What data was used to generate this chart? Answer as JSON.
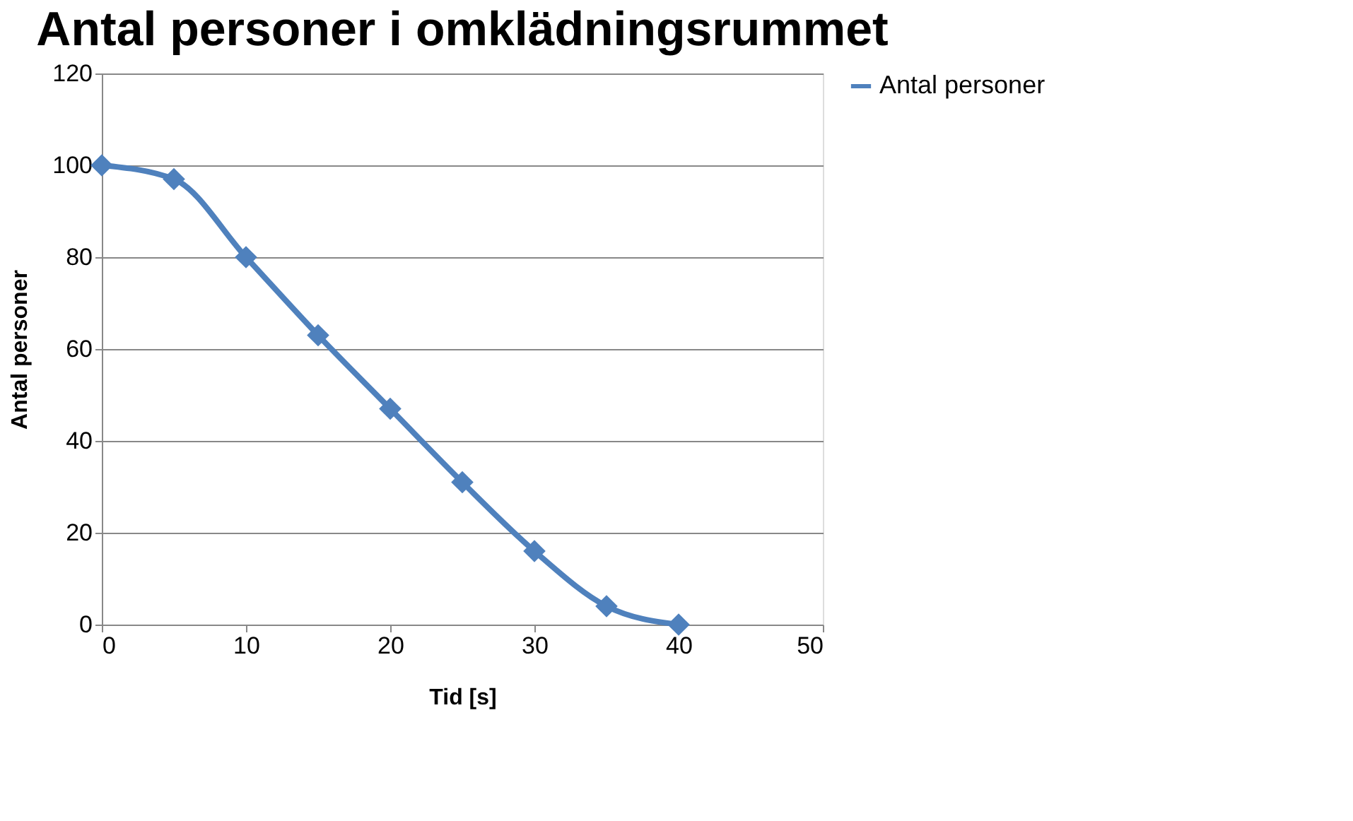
{
  "chart_data": {
    "type": "line",
    "title": "Antal personer i omklädningsrummet",
    "xlabel": "Tid [s]",
    "ylabel": "Antal personer",
    "x": [
      0,
      5,
      10,
      15,
      20,
      25,
      30,
      35,
      40
    ],
    "series": [
      {
        "name": "Antal personer",
        "color": "#4f81bd",
        "values": [
          100,
          97,
          80,
          63,
          47,
          31,
          16,
          4,
          0
        ]
      }
    ],
    "xlim": [
      0,
      50
    ],
    "xticks": [
      0,
      10,
      20,
      30,
      40,
      50
    ],
    "ylim": [
      0,
      120
    ],
    "yticks": [
      0,
      20,
      40,
      60,
      80,
      100,
      120
    ],
    "grid": "y",
    "legend": "right",
    "marker": "diamond",
    "line_style": "solid"
  }
}
